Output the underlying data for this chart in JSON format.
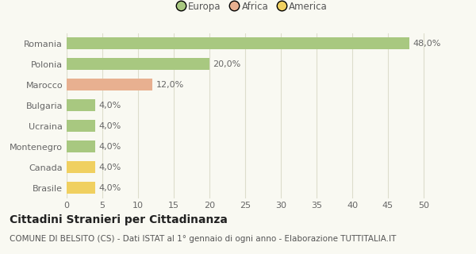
{
  "categories": [
    "Brasile",
    "Canada",
    "Montenegro",
    "Ucraina",
    "Bulgaria",
    "Marocco",
    "Polonia",
    "Romania"
  ],
  "values": [
    4.0,
    4.0,
    4.0,
    4.0,
    4.0,
    12.0,
    20.0,
    48.0
  ],
  "colors": [
    "#f0d060",
    "#f0d060",
    "#a8c880",
    "#a8c880",
    "#a8c880",
    "#e8b090",
    "#a8c880",
    "#a8c880"
  ],
  "continent": [
    "America",
    "America",
    "Europa",
    "Europa",
    "Europa",
    "Africa",
    "Europa",
    "Europa"
  ],
  "legend": [
    {
      "label": "Europa",
      "color": "#a8c880"
    },
    {
      "label": "Africa",
      "color": "#e8b090"
    },
    {
      "label": "America",
      "color": "#f0d060"
    }
  ],
  "title": "Cittadini Stranieri per Cittadinanza",
  "subtitle": "COMUNE DI BELSITO (CS) - Dati ISTAT al 1° gennaio di ogni anno - Elaborazione TUTTITALIA.IT",
  "xlim": [
    0,
    52
  ],
  "xticks": [
    0,
    5,
    10,
    15,
    20,
    25,
    30,
    35,
    40,
    45,
    50
  ],
  "background_color": "#f9f9f2",
  "grid_color": "#ddddcc",
  "bar_height": 0.55,
  "title_fontsize": 10,
  "subtitle_fontsize": 7.5,
  "label_fontsize": 8,
  "tick_fontsize": 8,
  "legend_fontsize": 8.5
}
